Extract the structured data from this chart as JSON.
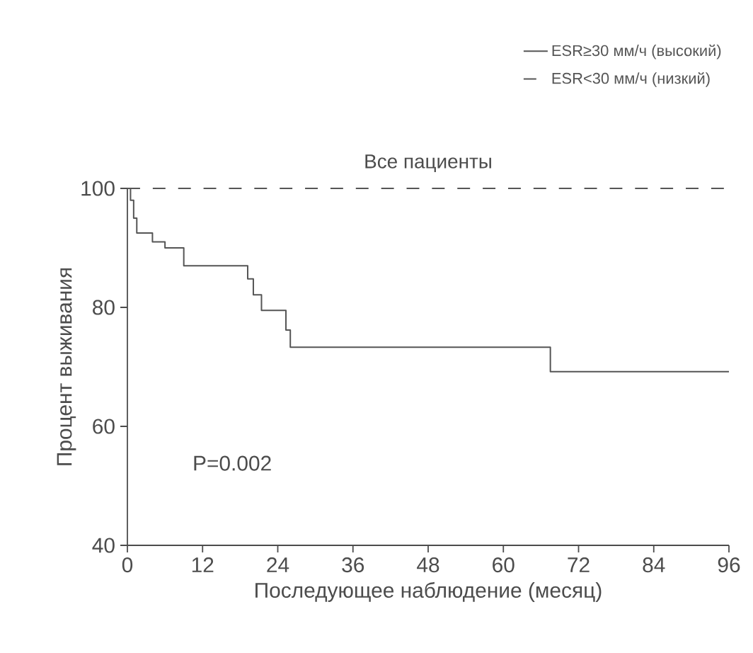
{
  "chart_data": {
    "type": "step",
    "title": "Все пациенты",
    "xlabel": "Последующее наблюдение (месяц)",
    "ylabel": "Процент выживания",
    "xlim": [
      0,
      96
    ],
    "xticks": [
      0,
      12,
      24,
      36,
      48,
      60,
      72,
      84,
      96
    ],
    "ylim": [
      40,
      100
    ],
    "yticks": [
      40,
      60,
      80,
      100
    ],
    "legend": "top right",
    "grid": false,
    "marker": "none",
    "annotations": [
      "P=0.002"
    ],
    "series": [
      {
        "name": "ESR≥30 мм/ч (высокий)",
        "color": "#555555",
        "line_style": "solid",
        "x": [
          0,
          0.5,
          1,
          1.5,
          4,
          6,
          9,
          19.2,
          20.1,
          21.4,
          25.3,
          26,
          67.5,
          96
        ],
        "values": [
          100,
          98,
          95,
          92.5,
          91,
          90,
          87,
          84.8,
          82.1,
          79.5,
          76.2,
          73.3,
          69.2,
          69.2
        ]
      },
      {
        "name": "ESR<30 мм/ч (низкий)",
        "color": "#555555",
        "line_style": "dashed",
        "x": [
          0,
          96
        ],
        "values": [
          100,
          100
        ]
      }
    ]
  }
}
